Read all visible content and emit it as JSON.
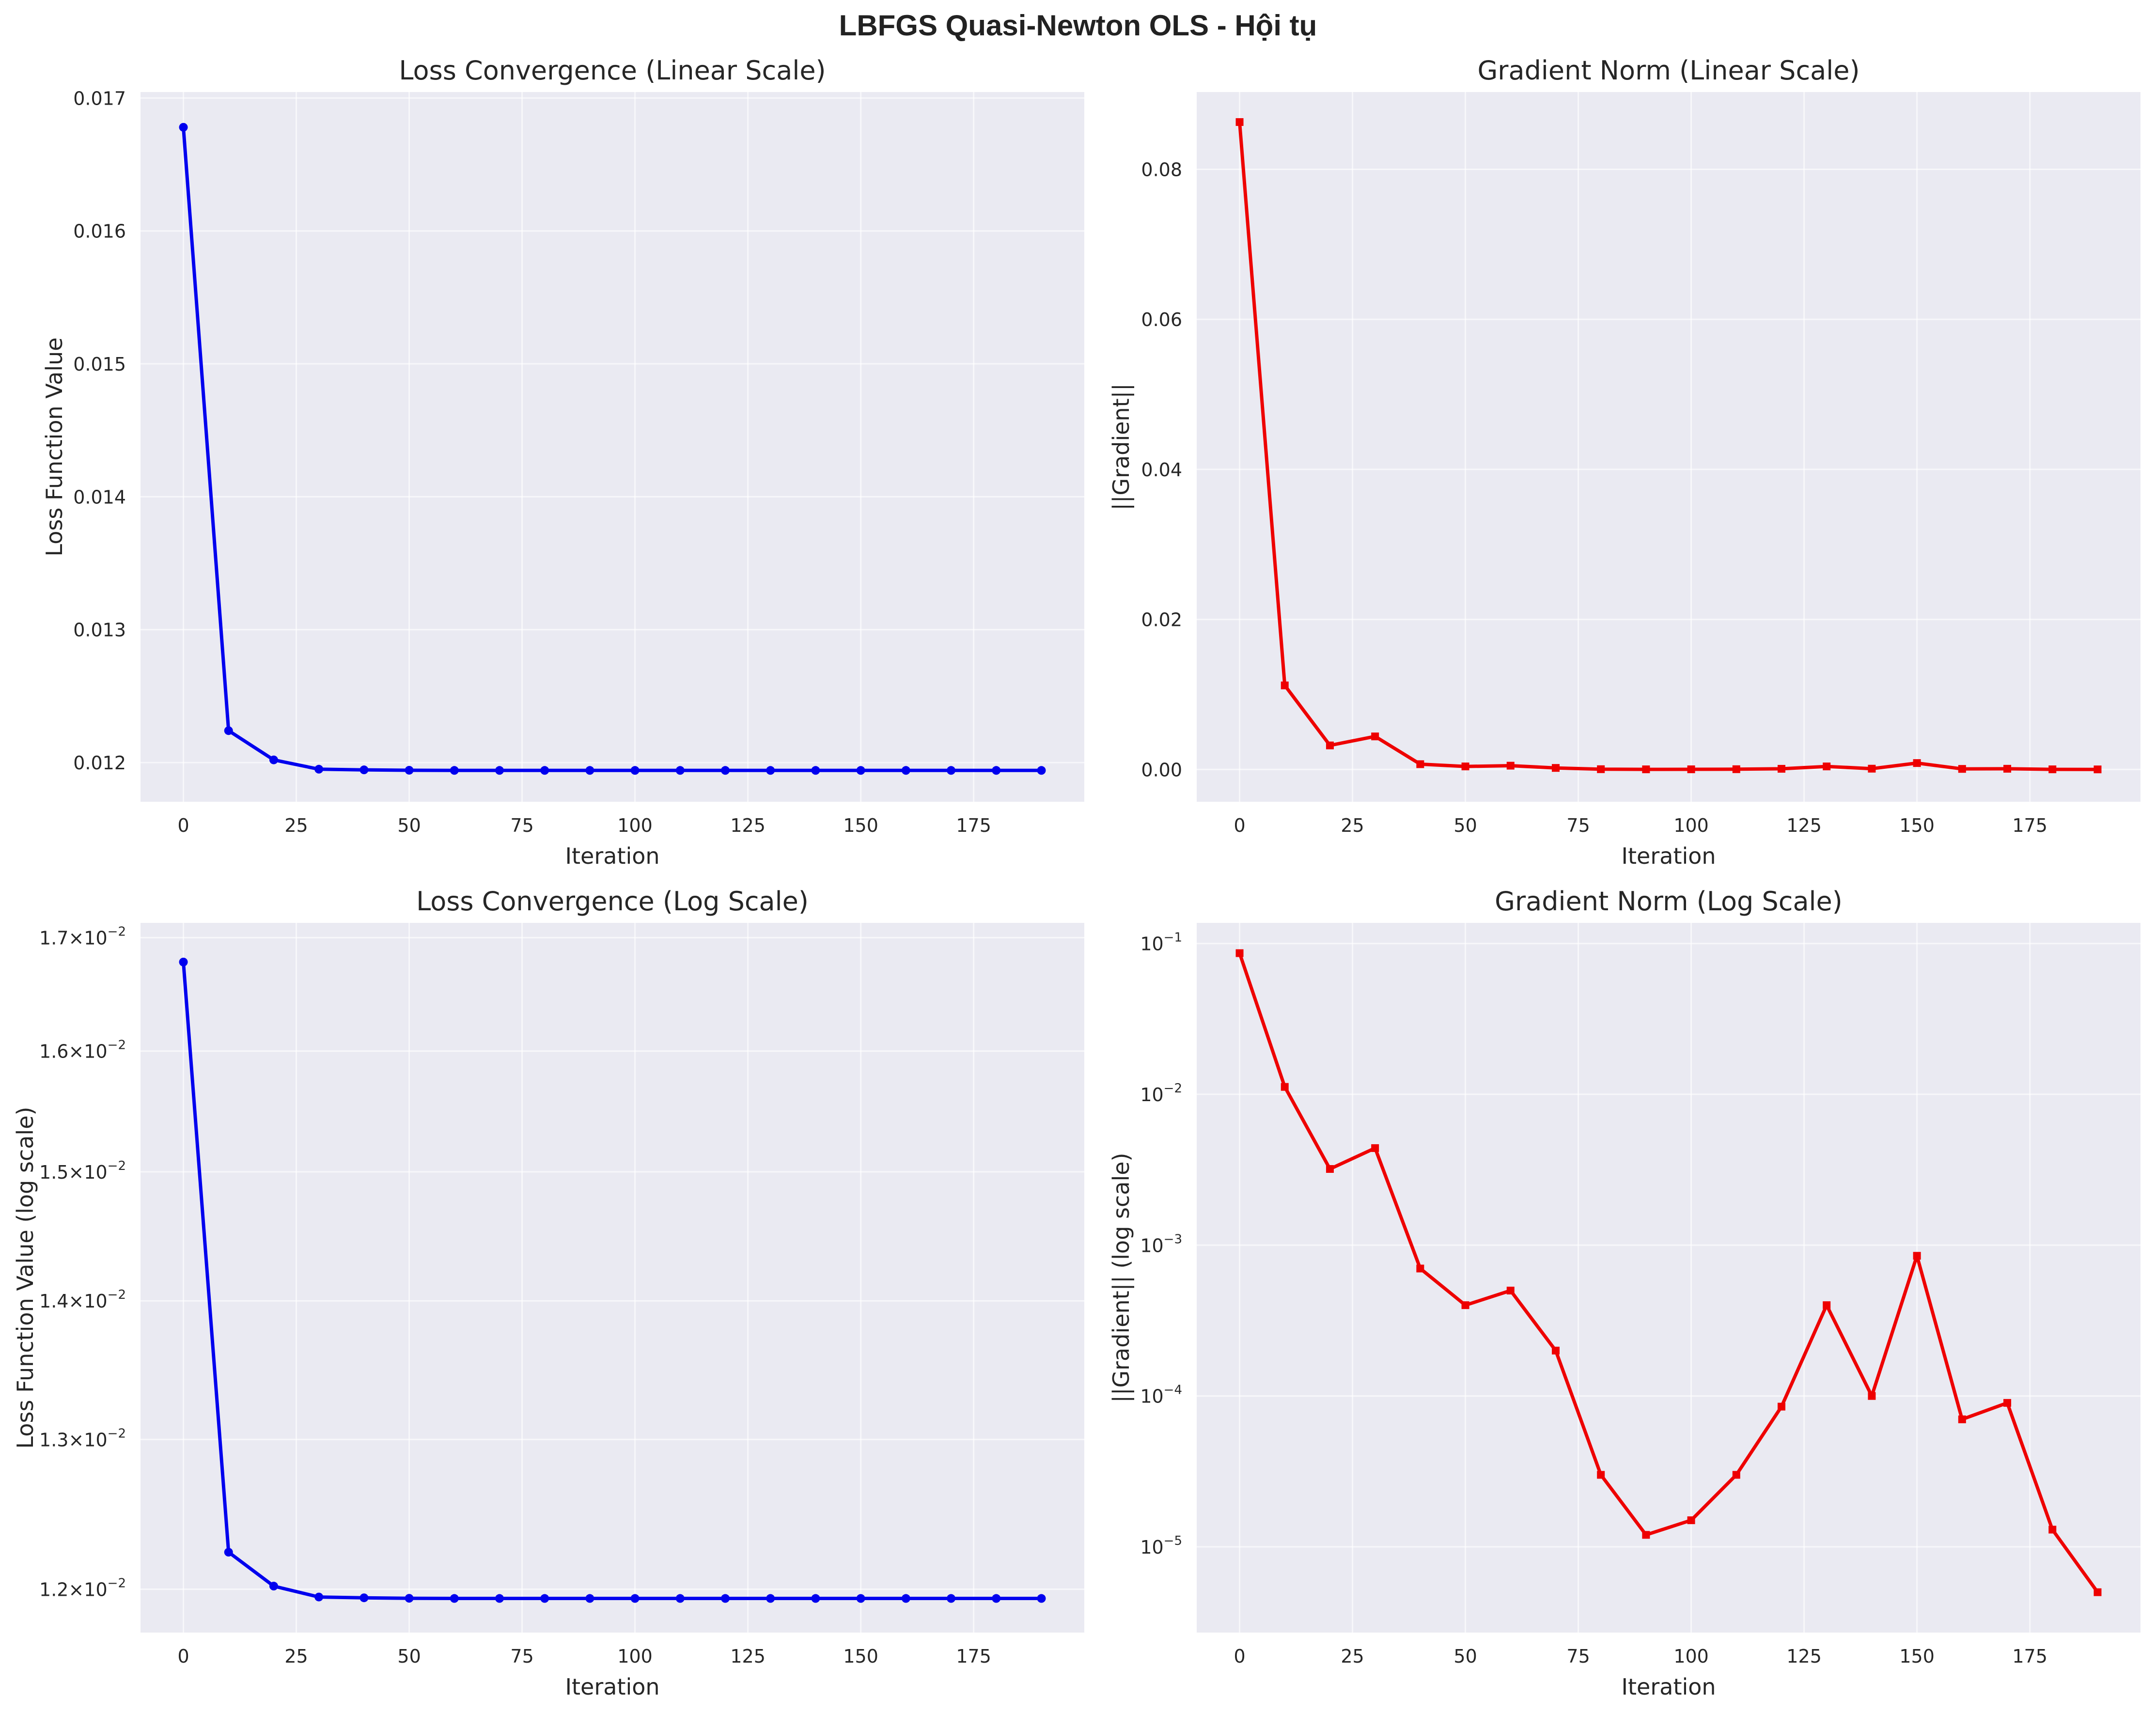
{
  "figure_title": "LBFGS Quasi-Newton OLS - Hội tụ",
  "colors": {
    "loss": "#0000ee",
    "grad": "#ee0000",
    "panel_bg": "#eaeaf2",
    "grid": "#ffffff"
  },
  "chart_data": [
    {
      "type": "line",
      "title": "Loss Convergence (Linear Scale)",
      "xlabel": "Iteration",
      "ylabel": "Loss Function Value",
      "yscale": "linear",
      "xlim": [
        -9.5,
        199.5
      ],
      "ylim": [
        0.011705,
        0.017045
      ],
      "xticks": [
        0,
        25,
        50,
        75,
        100,
        125,
        150,
        175
      ],
      "yticks": [
        0.012,
        0.013,
        0.014,
        0.015,
        0.016,
        0.017
      ],
      "ytick_labels": [
        "0.012",
        "0.013",
        "0.014",
        "0.015",
        "0.016",
        "0.017"
      ],
      "grid": true,
      "marker": "circle",
      "series": [
        {
          "color": "#0000ee",
          "x": [
            0,
            10,
            20,
            30,
            40,
            50,
            60,
            70,
            80,
            90,
            100,
            110,
            120,
            130,
            140,
            150,
            160,
            170,
            180,
            190
          ],
          "y": [
            0.01678,
            0.01224,
            0.01202,
            0.01195,
            0.011945,
            0.011942,
            0.011941,
            0.011941,
            0.011941,
            0.011941,
            0.011941,
            0.011941,
            0.011941,
            0.011941,
            0.011941,
            0.011941,
            0.011941,
            0.011941,
            0.011941,
            0.011941
          ]
        }
      ]
    },
    {
      "type": "line",
      "title": "Gradient Norm (Linear Scale)",
      "xlabel": "Iteration",
      "ylabel": "||Gradient||",
      "yscale": "linear",
      "xlim": [
        -9.5,
        199.5
      ],
      "ylim": [
        -0.00431,
        0.0903
      ],
      "xticks": [
        0,
        25,
        50,
        75,
        100,
        125,
        150,
        175
      ],
      "yticks": [
        0.0,
        0.02,
        0.04,
        0.06,
        0.08
      ],
      "ytick_labels": [
        "0.00",
        "0.02",
        "0.04",
        "0.06",
        "0.08"
      ],
      "grid": true,
      "marker": "square",
      "series": [
        {
          "color": "#ee0000",
          "x": [
            0,
            10,
            20,
            30,
            40,
            50,
            60,
            70,
            80,
            90,
            100,
            110,
            120,
            130,
            140,
            150,
            160,
            170,
            180,
            190
          ],
          "y": [
            0.0863,
            0.0112,
            0.0032,
            0.0044,
            0.0007,
            0.0004,
            0.0005,
            0.0002,
            3e-05,
            1.2e-05,
            1.5e-05,
            3e-05,
            8.5e-05,
            0.0004,
            0.0001,
            0.00085,
            7e-05,
            9e-05,
            1.3e-05,
            5e-06
          ]
        }
      ]
    },
    {
      "type": "line",
      "title": "Loss Convergence (Log Scale)",
      "xlabel": "Iteration",
      "ylabel": "Loss Function Value (log scale)",
      "yscale": "log",
      "xlim": [
        -9.5,
        199.5
      ],
      "ylim": [
        0.011725,
        0.017135
      ],
      "xticks": [
        0,
        25,
        50,
        75,
        100,
        125,
        150,
        175
      ],
      "yticks": [
        0.012,
        0.013,
        0.014,
        0.015,
        0.016,
        0.017
      ],
      "ytick_labels": [
        {
          "mantissa": "1.2",
          "exp": "−2"
        },
        {
          "mantissa": "1.3",
          "exp": "−2"
        },
        {
          "mantissa": "1.4",
          "exp": "−2"
        },
        {
          "mantissa": "1.5",
          "exp": "−2"
        },
        {
          "mantissa": "1.6",
          "exp": "−2"
        },
        {
          "mantissa": "1.7",
          "exp": "−2"
        }
      ],
      "grid": true,
      "marker": "circle",
      "series": [
        {
          "color": "#0000ee",
          "x": [
            0,
            10,
            20,
            30,
            40,
            50,
            60,
            70,
            80,
            90,
            100,
            110,
            120,
            130,
            140,
            150,
            160,
            170,
            180,
            190
          ],
          "y": [
            0.01678,
            0.01224,
            0.01202,
            0.01195,
            0.011945,
            0.011942,
            0.011941,
            0.011941,
            0.011941,
            0.011941,
            0.011941,
            0.011941,
            0.011941,
            0.011941,
            0.011941,
            0.011941,
            0.011941,
            0.011941,
            0.011941,
            0.011941
          ]
        }
      ]
    },
    {
      "type": "line",
      "title": "Gradient Norm (Log Scale)",
      "xlabel": "Iteration",
      "ylabel": "||Gradient|| (log scale)",
      "yscale": "log",
      "xlim": [
        -9.5,
        199.5
      ],
      "ylim": [
        2.7e-06,
        0.137
      ],
      "xticks": [
        0,
        25,
        50,
        75,
        100,
        125,
        150,
        175
      ],
      "yticks": [
        1e-05,
        0.0001,
        0.001,
        0.01,
        0.1
      ],
      "ytick_labels": [
        {
          "mantissa": "10",
          "exp": "−5"
        },
        {
          "mantissa": "10",
          "exp": "−4"
        },
        {
          "mantissa": "10",
          "exp": "−3"
        },
        {
          "mantissa": "10",
          "exp": "−2"
        },
        {
          "mantissa": "10",
          "exp": "−1"
        }
      ],
      "grid": true,
      "marker": "square",
      "series": [
        {
          "color": "#ee0000",
          "x": [
            0,
            10,
            20,
            30,
            40,
            50,
            60,
            70,
            80,
            90,
            100,
            110,
            120,
            130,
            140,
            150,
            160,
            170,
            180,
            190
          ],
          "y": [
            0.0863,
            0.0112,
            0.0032,
            0.0044,
            0.0007,
            0.0004,
            0.0005,
            0.0002,
            3e-05,
            1.2e-05,
            1.5e-05,
            3e-05,
            8.5e-05,
            0.0004,
            0.0001,
            0.00085,
            7e-05,
            9e-05,
            1.3e-05,
            5e-06
          ]
        }
      ]
    }
  ]
}
